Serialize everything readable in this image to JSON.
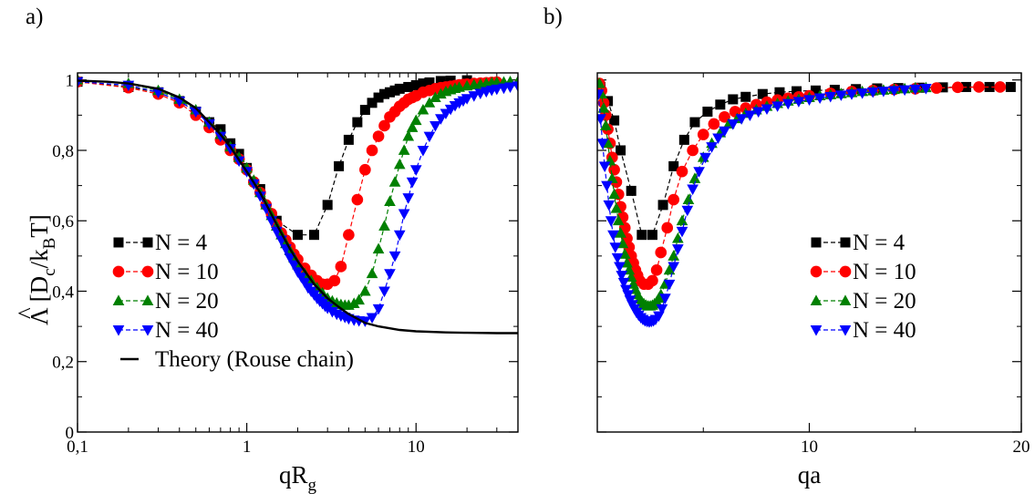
{
  "chart_data": [
    {
      "type": "line",
      "panel_label": "a)",
      "x_scale": "log",
      "xlim": [
        0.1,
        40
      ],
      "ylim": [
        0,
        1.02
      ],
      "xlabel_main": "qR",
      "xlabel_sub": "g",
      "ylabel": {
        "hat": "^",
        "lambda": "Λ",
        "open": "[D",
        "c": "c",
        "mid": "/k",
        "b": "B",
        "close": "T]"
      },
      "x_ticks": [
        {
          "v": 0.1,
          "label": "0,1"
        },
        {
          "v": 1,
          "label": "1"
        },
        {
          "v": 10,
          "label": "10"
        }
      ],
      "y_ticks": [
        {
          "v": 0,
          "label": "0"
        },
        {
          "v": 0.2,
          "label": "0,2"
        },
        {
          "v": 0.4,
          "label": "0,4"
        },
        {
          "v": 0.6,
          "label": "0,6"
        },
        {
          "v": 0.8,
          "label": "0,8"
        },
        {
          "v": 1,
          "label": "1"
        }
      ],
      "legend_position": "bottom-left",
      "series": [
        {
          "name": "N = 4",
          "color": "#000000",
          "marker": "square",
          "x": [
            0.1,
            0.2,
            0.3,
            0.4,
            0.5,
            0.6,
            0.7,
            0.8,
            0.9,
            1.0,
            1.2,
            1.5,
            2.0,
            2.5,
            3.0,
            3.5,
            4.0,
            4.5,
            5.0,
            5.5,
            6.0,
            6.5,
            7.0,
            7.5,
            8.0,
            9.0,
            10.0,
            11.0,
            12.0,
            14.0,
            16.0,
            20.0
          ],
          "y": [
            0.995,
            0.98,
            0.965,
            0.94,
            0.91,
            0.88,
            0.86,
            0.82,
            0.79,
            0.75,
            0.69,
            0.6,
            0.56,
            0.56,
            0.645,
            0.755,
            0.83,
            0.88,
            0.915,
            0.935,
            0.95,
            0.96,
            0.965,
            0.97,
            0.975,
            0.98,
            0.985,
            0.99,
            0.993,
            0.997,
            0.998,
            0.999
          ]
        },
        {
          "name": "N = 10",
          "color": "#ff0000",
          "marker": "circle",
          "x": [
            0.1,
            0.2,
            0.3,
            0.4,
            0.5,
            0.6,
            0.7,
            0.8,
            0.9,
            1.0,
            1.1,
            1.2,
            1.3,
            1.4,
            1.5,
            1.6,
            1.7,
            1.8,
            1.9,
            2.0,
            2.2,
            2.4,
            2.6,
            2.8,
            3.0,
            3.3,
            3.6,
            4.0,
            4.5,
            5.0,
            5.5,
            6.0,
            6.5,
            7.0,
            7.5,
            8.0,
            8.5,
            9.0,
            9.5,
            10.0,
            11.0,
            12.0,
            13.0,
            14.0,
            15.0,
            16.0,
            17.0,
            18.0,
            19.0,
            20.0,
            22.0,
            24.0,
            26.0,
            28.0,
            30.0
          ],
          "y": [
            0.995,
            0.978,
            0.96,
            0.935,
            0.9,
            0.865,
            0.83,
            0.8,
            0.775,
            0.745,
            0.71,
            0.68,
            0.645,
            0.62,
            0.59,
            0.565,
            0.545,
            0.525,
            0.505,
            0.49,
            0.465,
            0.445,
            0.43,
            0.42,
            0.42,
            0.43,
            0.47,
            0.56,
            0.66,
            0.745,
            0.8,
            0.84,
            0.87,
            0.895,
            0.91,
            0.925,
            0.935,
            0.945,
            0.95,
            0.955,
            0.965,
            0.97,
            0.975,
            0.978,
            0.98,
            0.982,
            0.984,
            0.986,
            0.987,
            0.988,
            0.99,
            0.991,
            0.992,
            0.993,
            0.994
          ]
        },
        {
          "name": "N = 20",
          "color": "#008000",
          "marker": "triangle-up",
          "x": [
            0.1,
            0.2,
            0.3,
            0.4,
            0.5,
            0.6,
            0.7,
            0.8,
            0.9,
            1.0,
            1.1,
            1.2,
            1.3,
            1.4,
            1.5,
            1.6,
            1.7,
            1.8,
            1.9,
            2.0,
            2.2,
            2.4,
            2.6,
            2.8,
            3.0,
            3.2,
            3.4,
            3.6,
            3.8,
            4.0,
            4.3,
            4.6,
            5.0,
            5.5,
            6.0,
            6.5,
            7.0,
            7.5,
            8.0,
            8.5,
            9.0,
            9.5,
            10.0,
            11.0,
            12.0,
            13.0,
            14.0,
            15.0,
            16.0,
            17.0,
            18.0,
            20.0,
            22.0,
            24.0,
            26.0,
            28.0,
            30.0,
            33.0,
            36.0,
            40.0
          ],
          "y": [
            1.0,
            0.99,
            0.97,
            0.945,
            0.915,
            0.88,
            0.845,
            0.81,
            0.78,
            0.75,
            0.715,
            0.68,
            0.645,
            0.615,
            0.585,
            0.56,
            0.535,
            0.515,
            0.495,
            0.475,
            0.45,
            0.43,
            0.41,
            0.395,
            0.38,
            0.372,
            0.366,
            0.362,
            0.36,
            0.36,
            0.365,
            0.375,
            0.4,
            0.45,
            0.52,
            0.585,
            0.655,
            0.71,
            0.76,
            0.8,
            0.84,
            0.865,
            0.885,
            0.915,
            0.935,
            0.95,
            0.96,
            0.967,
            0.972,
            0.976,
            0.979,
            0.983,
            0.986,
            0.988,
            0.99,
            0.992,
            0.993,
            0.994,
            0.995,
            0.996
          ]
        },
        {
          "name": "N = 40",
          "color": "#0000ff",
          "marker": "triangle-down",
          "x": [
            0.1,
            0.2,
            0.3,
            0.4,
            0.5,
            0.6,
            0.7,
            0.8,
            0.9,
            1.0,
            1.1,
            1.2,
            1.3,
            1.4,
            1.5,
            1.6,
            1.7,
            1.8,
            1.9,
            2.0,
            2.1,
            2.2,
            2.3,
            2.4,
            2.5,
            2.6,
            2.7,
            2.8,
            2.9,
            3.0,
            3.2,
            3.4,
            3.6,
            3.8,
            4.0,
            4.3,
            4.6,
            5.0,
            5.5,
            6.0,
            6.5,
            7.0,
            7.5,
            8.0,
            8.5,
            9.0,
            9.5,
            10.0,
            11.0,
            12.0,
            13.0,
            14.0,
            15.0,
            16.0,
            17.0,
            18.0,
            19.0,
            20.0,
            22.0,
            24.0,
            26.0,
            28.0,
            30.0,
            33.0,
            36.0,
            40.0
          ],
          "y": [
            0.995,
            0.985,
            0.965,
            0.94,
            0.91,
            0.875,
            0.84,
            0.805,
            0.77,
            0.74,
            0.705,
            0.67,
            0.635,
            0.6,
            0.57,
            0.545,
            0.52,
            0.495,
            0.475,
            0.455,
            0.44,
            0.425,
            0.41,
            0.4,
            0.39,
            0.38,
            0.372,
            0.365,
            0.358,
            0.352,
            0.342,
            0.335,
            0.33,
            0.326,
            0.322,
            0.318,
            0.316,
            0.315,
            0.325,
            0.35,
            0.4,
            0.45,
            0.5,
            0.56,
            0.62,
            0.665,
            0.71,
            0.745,
            0.8,
            0.84,
            0.87,
            0.89,
            0.905,
            0.917,
            0.927,
            0.935,
            0.941,
            0.947,
            0.955,
            0.962,
            0.967,
            0.971,
            0.974,
            0.977,
            0.98,
            0.983
          ]
        },
        {
          "name": "Theory (Rouse chain)",
          "color": "#000000",
          "marker": "none",
          "x": [
            0.1,
            0.15,
            0.2,
            0.3,
            0.4,
            0.5,
            0.6,
            0.7,
            0.8,
            1.0,
            1.2,
            1.5,
            1.8,
            2.0,
            2.5,
            3.0,
            3.5,
            4.0,
            5.0,
            6.0,
            8.0,
            10.0,
            15.0,
            20.0,
            30.0,
            40.0
          ],
          "y": [
            0.998,
            0.995,
            0.99,
            0.975,
            0.95,
            0.92,
            0.88,
            0.845,
            0.81,
            0.74,
            0.68,
            0.59,
            0.52,
            0.485,
            0.42,
            0.38,
            0.355,
            0.335,
            0.31,
            0.3,
            0.29,
            0.286,
            0.283,
            0.282,
            0.281,
            0.281
          ]
        }
      ]
    },
    {
      "type": "line",
      "panel_label": "b)",
      "x_scale": "linear",
      "xlim": [
        0,
        20
      ],
      "ylim": [
        0,
        1.02
      ],
      "xlabel_main": "qa",
      "xlabel_sub": "",
      "x_ticks": [
        {
          "v": 10,
          "label": "10"
        },
        {
          "v": 20,
          "label": "20"
        }
      ],
      "y_ticks": [
        {
          "v": 0
        },
        {
          "v": 0.2
        },
        {
          "v": 0.4
        },
        {
          "v": 0.6
        },
        {
          "v": 0.8
        },
        {
          "v": 1
        }
      ],
      "legend_position": "center-right",
      "series": [
        {
          "name": "N = 4",
          "color": "#000000",
          "marker": "square",
          "x": [
            0.15,
            0.5,
            0.8,
            1.1,
            1.6,
            2.1,
            2.6,
            3.1,
            3.6,
            4.1,
            4.6,
            5.2,
            5.8,
            6.4,
            7.0,
            7.8,
            8.6,
            9.4,
            10.3,
            11.2,
            12.2,
            13.2,
            14.2,
            15.2,
            16.3,
            17.4,
            18.5,
            19.5
          ],
          "y": [
            0.98,
            0.94,
            0.885,
            0.8,
            0.685,
            0.56,
            0.56,
            0.645,
            0.755,
            0.83,
            0.88,
            0.91,
            0.93,
            0.945,
            0.952,
            0.96,
            0.965,
            0.968,
            0.97,
            0.972,
            0.974,
            0.976,
            0.977,
            0.978,
            0.979,
            0.98,
            0.98,
            0.98
          ]
        },
        {
          "name": "N = 10",
          "color": "#ff0000",
          "marker": "circle",
          "x": [
            0.1,
            0.2,
            0.3,
            0.4,
            0.5,
            0.6,
            0.7,
            0.8,
            0.9,
            1.0,
            1.1,
            1.2,
            1.3,
            1.4,
            1.5,
            1.6,
            1.7,
            1.8,
            1.9,
            2.0,
            2.2,
            2.4,
            2.6,
            2.8,
            3.0,
            3.3,
            3.6,
            4.0,
            4.5,
            5.0,
            5.5,
            6.0,
            6.5,
            7.0,
            7.5,
            8.0,
            8.5,
            9.0,
            9.5,
            10.0,
            11.0,
            12.0,
            13.0,
            14.0,
            15.0,
            16.0,
            17.0,
            18.0,
            19.0
          ],
          "y": [
            0.99,
            0.97,
            0.935,
            0.9,
            0.86,
            0.82,
            0.78,
            0.745,
            0.71,
            0.675,
            0.64,
            0.61,
            0.58,
            0.55,
            0.525,
            0.5,
            0.48,
            0.46,
            0.445,
            0.43,
            0.42,
            0.42,
            0.43,
            0.46,
            0.51,
            0.58,
            0.66,
            0.74,
            0.8,
            0.845,
            0.875,
            0.895,
            0.91,
            0.92,
            0.93,
            0.937,
            0.943,
            0.948,
            0.952,
            0.955,
            0.962,
            0.967,
            0.97,
            0.973,
            0.975,
            0.977,
            0.979,
            0.98,
            0.98
          ]
        },
        {
          "name": "N = 20",
          "color": "#008000",
          "marker": "triangle-up",
          "x": [
            0.1,
            0.2,
            0.3,
            0.4,
            0.5,
            0.6,
            0.7,
            0.8,
            0.9,
            1.0,
            1.1,
            1.2,
            1.3,
            1.4,
            1.5,
            1.6,
            1.7,
            1.8,
            1.9,
            2.0,
            2.1,
            2.2,
            2.3,
            2.4,
            2.5,
            2.6,
            2.7,
            2.8,
            2.9,
            3.0,
            3.2,
            3.4,
            3.6,
            3.8,
            4.0,
            4.3,
            4.6,
            5.0,
            5.4,
            5.8,
            6.2,
            6.6,
            7.0,
            7.5,
            8.0,
            8.5,
            9.0,
            9.5,
            10.0,
            10.5,
            11.0,
            11.5,
            12.0,
            12.5,
            13.0,
            13.5,
            14.0,
            14.5,
            15.0,
            15.5
          ],
          "y": [
            0.99,
            0.96,
            0.92,
            0.87,
            0.82,
            0.77,
            0.72,
            0.675,
            0.635,
            0.6,
            0.565,
            0.535,
            0.505,
            0.48,
            0.46,
            0.44,
            0.42,
            0.405,
            0.39,
            0.378,
            0.37,
            0.364,
            0.36,
            0.358,
            0.358,
            0.36,
            0.364,
            0.37,
            0.38,
            0.39,
            0.42,
            0.46,
            0.5,
            0.55,
            0.6,
            0.66,
            0.72,
            0.78,
            0.82,
            0.85,
            0.875,
            0.89,
            0.905,
            0.915,
            0.925,
            0.933,
            0.94,
            0.945,
            0.95,
            0.955,
            0.958,
            0.961,
            0.964,
            0.967,
            0.969,
            0.971,
            0.973,
            0.975,
            0.977,
            0.978
          ]
        },
        {
          "name": "N = 40",
          "color": "#0000ff",
          "marker": "triangle-down",
          "x": [
            0.05,
            0.15,
            0.25,
            0.35,
            0.45,
            0.55,
            0.65,
            0.75,
            0.85,
            0.95,
            1.05,
            1.15,
            1.25,
            1.35,
            1.45,
            1.55,
            1.65,
            1.75,
            1.85,
            1.95,
            2.05,
            2.15,
            2.25,
            2.35,
            2.45,
            2.55,
            2.65,
            2.75,
            2.9,
            3.05,
            3.2,
            3.4,
            3.6,
            3.8,
            4.0,
            4.25,
            4.5,
            4.8,
            5.1,
            5.4,
            5.7,
            6.0,
            6.4,
            6.8,
            7.2,
            7.6,
            8.0,
            8.5,
            9.0,
            9.5,
            10.0,
            10.5,
            11.0,
            11.5,
            12.0,
            12.5,
            13.0,
            13.5,
            14.0,
            14.5,
            15.0,
            15.5
          ],
          "y": [
            0.96,
            0.89,
            0.82,
            0.755,
            0.7,
            0.645,
            0.6,
            0.56,
            0.525,
            0.495,
            0.47,
            0.445,
            0.425,
            0.405,
            0.39,
            0.375,
            0.362,
            0.35,
            0.34,
            0.332,
            0.325,
            0.32,
            0.316,
            0.314,
            0.313,
            0.314,
            0.316,
            0.32,
            0.33,
            0.35,
            0.38,
            0.42,
            0.47,
            0.52,
            0.57,
            0.63,
            0.69,
            0.74,
            0.78,
            0.81,
            0.835,
            0.855,
            0.875,
            0.89,
            0.9,
            0.91,
            0.918,
            0.926,
            0.933,
            0.939,
            0.944,
            0.949,
            0.953,
            0.957,
            0.96,
            0.963,
            0.966,
            0.968,
            0.97,
            0.972,
            0.974,
            0.976
          ]
        }
      ]
    }
  ]
}
